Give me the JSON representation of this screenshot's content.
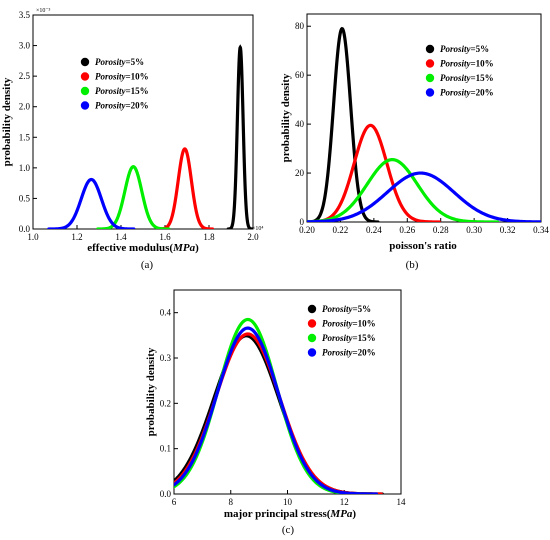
{
  "chart_data": [
    {
      "panel": "(a)",
      "type": "line",
      "xlabel": "effective modulus(MPa)",
      "ylabel": "probability density",
      "x_scale_label": "×10⁴",
      "y_scale_label": "×10⁻³",
      "xlim": [
        1.0,
        2.0
      ],
      "ylim": [
        0.0,
        3.5
      ],
      "x_ticks": [
        "1.0",
        "1.2",
        "1.4",
        "1.6",
        "1.8",
        "2.0"
      ],
      "y_ticks": [
        "0.0",
        "0.5",
        "1.0",
        "1.5",
        "2.0",
        "2.5",
        "3.0",
        "3.5"
      ],
      "series": [
        {
          "name": "Porosity=5%",
          "color": "#000000",
          "mean": 1.942,
          "sd": 0.013,
          "peak": 2.97
        },
        {
          "name": "Porosity=10%",
          "color": "#ff0000",
          "mean": 1.69,
          "sd": 0.03,
          "peak": 1.31
        },
        {
          "name": "Porosity=15%",
          "color": "#00ee00",
          "mean": 1.456,
          "sd": 0.0385,
          "peak": 1.02
        },
        {
          "name": "Porosity=20%",
          "color": "#0000ff",
          "mean": 1.265,
          "sd": 0.046,
          "peak": 0.81
        }
      ],
      "legend": [
        {
          "italic": "Porosity",
          "rest": "=5%",
          "color": "#000000"
        },
        {
          "italic": "Porosity",
          "rest": "=10%",
          "color": "#ff0000"
        },
        {
          "italic": "Porosity",
          "rest": "=15%",
          "color": "#00ee00"
        },
        {
          "italic": "Porosity",
          "rest": "=20%",
          "color": "#0000ff"
        }
      ],
      "legend_position": "top-left"
    },
    {
      "panel": "(b)",
      "type": "line",
      "xlabel": "poisson's ratio",
      "ylabel": "probability density",
      "xlim": [
        0.2,
        0.34
      ],
      "ylim": [
        0,
        85
      ],
      "x_ticks": [
        "0.20",
        "0.22",
        "0.24",
        "0.26",
        "0.28",
        "0.30",
        "0.32",
        "0.34"
      ],
      "y_ticks": [
        "0",
        "20",
        "40",
        "60",
        "80"
      ],
      "series": [
        {
          "name": "Porosity=5%",
          "color": "#000000",
          "mean": 0.221,
          "sd": 0.0051,
          "peak": 79
        },
        {
          "name": "Porosity=10%",
          "color": "#ff0000",
          "mean": 0.238,
          "sd": 0.0098,
          "peak": 39.5
        },
        {
          "name": "Porosity=15%",
          "color": "#00ee00",
          "mean": 0.251,
          "sd": 0.015,
          "peak": 25.5
        },
        {
          "name": "Porosity=20%",
          "color": "#0000ff",
          "mean": 0.268,
          "sd": 0.02,
          "peak": 20
        }
      ],
      "legend": [
        {
          "italic": "Porosity",
          "rest": "=5%",
          "color": "#000000"
        },
        {
          "italic": "Porosity",
          "rest": "=10%",
          "color": "#ff0000"
        },
        {
          "italic": "Porosity",
          "rest": "=15%",
          "color": "#00ee00"
        },
        {
          "italic": "Porosity",
          "rest": "=20%",
          "color": "#0000ff"
        }
      ],
      "legend_position": "top-right"
    },
    {
      "panel": "(c)",
      "type": "line",
      "xlabel": "major principal stress(MPa)",
      "ylabel": "probability density",
      "xlim": [
        6,
        14
      ],
      "ylim": [
        0.0,
        0.45
      ],
      "x_ticks": [
        "6",
        "8",
        "10",
        "12",
        "14"
      ],
      "y_ticks": [
        "0.0",
        "0.1",
        "0.2",
        "0.3",
        "0.4"
      ],
      "series": [
        {
          "name": "Porosity=5%",
          "color": "#000000",
          "mean": 8.55,
          "sd": 1.14,
          "peak": 0.349
        },
        {
          "name": "Porosity=10%",
          "color": "#ff0000",
          "mean": 8.6,
          "sd": 1.12,
          "peak": 0.353
        },
        {
          "name": "Porosity=15%",
          "color": "#00ee00",
          "mean": 8.6,
          "sd": 1.03,
          "peak": 0.385
        },
        {
          "name": "Porosity=20%",
          "color": "#0000ff",
          "mean": 8.6,
          "sd": 1.08,
          "peak": 0.366
        }
      ],
      "legend": [
        {
          "italic": "Porosity",
          "rest": "=5%",
          "color": "#000000"
        },
        {
          "italic": "Porosity",
          "rest": "=10%",
          "color": "#ff0000"
        },
        {
          "italic": "Porosity",
          "rest": "=15%",
          "color": "#00ee00"
        },
        {
          "italic": "Porosity",
          "rest": "=20%",
          "color": "#0000ff"
        }
      ],
      "legend_position": "top-right"
    }
  ]
}
